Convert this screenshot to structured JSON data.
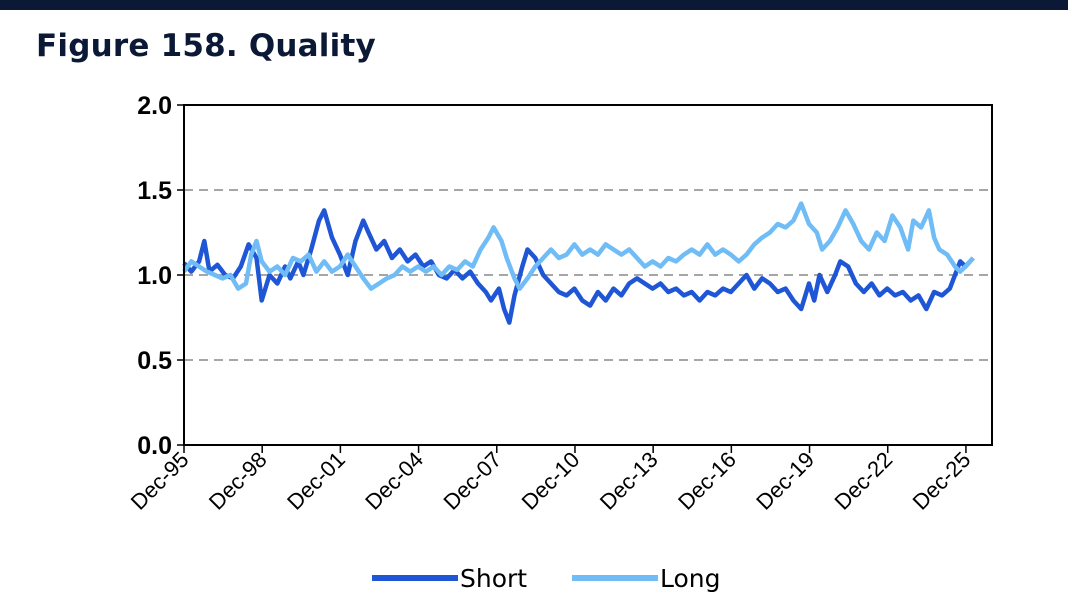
{
  "page": {
    "title": "Figure 158. Quality",
    "colors": {
      "header_bar": "#0b1836"
    }
  },
  "chart_data": {
    "type": "line",
    "title": "",
    "xlabel": "",
    "ylabel": "",
    "x_ticks": [
      "Dec-95",
      "Dec-98",
      "Dec-01",
      "Dec-04",
      "Dec-07",
      "Dec-10",
      "Dec-13",
      "Dec-16",
      "Dec-19",
      "Dec-22",
      "Dec-25"
    ],
    "y_ticks": [
      "0.0",
      "0.5",
      "1.0",
      "1.5",
      "2.0"
    ],
    "ylim": [
      0,
      2
    ],
    "xlim": [
      1995.92,
      2026.92
    ],
    "grid": "horizontal-dashed",
    "legend": "bottom-center",
    "series": [
      {
        "name": "Short",
        "color": "#1f56d6",
        "points": [
          [
            1995.92,
            1.07
          ],
          [
            1996.2,
            1.02
          ],
          [
            1996.5,
            1.08
          ],
          [
            1996.7,
            1.2
          ],
          [
            1996.9,
            1.02
          ],
          [
            1997.2,
            1.06
          ],
          [
            1997.5,
            1.0
          ],
          [
            1997.8,
            0.98
          ],
          [
            1998.1,
            1.05
          ],
          [
            1998.4,
            1.18
          ],
          [
            1998.7,
            1.1
          ],
          [
            1998.9,
            0.85
          ],
          [
            1999.2,
            1.0
          ],
          [
            1999.5,
            0.95
          ],
          [
            1999.8,
            1.05
          ],
          [
            2000.0,
            0.98
          ],
          [
            2000.3,
            1.08
          ],
          [
            2000.5,
            1.0
          ],
          [
            2000.8,
            1.15
          ],
          [
            2001.1,
            1.32
          ],
          [
            2001.3,
            1.38
          ],
          [
            2001.6,
            1.22
          ],
          [
            2001.9,
            1.12
          ],
          [
            2002.2,
            1.0
          ],
          [
            2002.5,
            1.2
          ],
          [
            2002.8,
            1.32
          ],
          [
            2003.0,
            1.25
          ],
          [
            2003.3,
            1.15
          ],
          [
            2003.6,
            1.2
          ],
          [
            2003.9,
            1.1
          ],
          [
            2004.2,
            1.15
          ],
          [
            2004.5,
            1.08
          ],
          [
            2004.8,
            1.12
          ],
          [
            2005.1,
            1.05
          ],
          [
            2005.4,
            1.08
          ],
          [
            2005.7,
            1.0
          ],
          [
            2006.0,
            0.98
          ],
          [
            2006.3,
            1.03
          ],
          [
            2006.6,
            0.98
          ],
          [
            2006.9,
            1.02
          ],
          [
            2007.2,
            0.95
          ],
          [
            2007.5,
            0.9
          ],
          [
            2007.7,
            0.85
          ],
          [
            2008.0,
            0.92
          ],
          [
            2008.2,
            0.8
          ],
          [
            2008.4,
            0.72
          ],
          [
            2008.6,
            0.88
          ],
          [
            2008.9,
            1.05
          ],
          [
            2009.1,
            1.15
          ],
          [
            2009.4,
            1.1
          ],
          [
            2009.7,
            1.0
          ],
          [
            2010.0,
            0.95
          ],
          [
            2010.3,
            0.9
          ],
          [
            2010.6,
            0.88
          ],
          [
            2010.9,
            0.92
          ],
          [
            2011.2,
            0.85
          ],
          [
            2011.5,
            0.82
          ],
          [
            2011.8,
            0.9
          ],
          [
            2012.1,
            0.85
          ],
          [
            2012.4,
            0.92
          ],
          [
            2012.7,
            0.88
          ],
          [
            2013.0,
            0.95
          ],
          [
            2013.3,
            0.98
          ],
          [
            2013.6,
            0.95
          ],
          [
            2013.9,
            0.92
          ],
          [
            2014.2,
            0.95
          ],
          [
            2014.5,
            0.9
          ],
          [
            2014.8,
            0.92
          ],
          [
            2015.1,
            0.88
          ],
          [
            2015.4,
            0.9
          ],
          [
            2015.7,
            0.85
          ],
          [
            2016.0,
            0.9
          ],
          [
            2016.3,
            0.88
          ],
          [
            2016.6,
            0.92
          ],
          [
            2016.9,
            0.9
          ],
          [
            2017.2,
            0.95
          ],
          [
            2017.5,
            1.0
          ],
          [
            2017.8,
            0.92
          ],
          [
            2018.1,
            0.98
          ],
          [
            2018.4,
            0.95
          ],
          [
            2018.7,
            0.9
          ],
          [
            2019.0,
            0.92
          ],
          [
            2019.3,
            0.85
          ],
          [
            2019.6,
            0.8
          ],
          [
            2019.9,
            0.95
          ],
          [
            2020.1,
            0.85
          ],
          [
            2020.3,
            1.0
          ],
          [
            2020.6,
            0.9
          ],
          [
            2020.9,
            1.0
          ],
          [
            2021.1,
            1.08
          ],
          [
            2021.4,
            1.05
          ],
          [
            2021.7,
            0.95
          ],
          [
            2022.0,
            0.9
          ],
          [
            2022.3,
            0.95
          ],
          [
            2022.6,
            0.88
          ],
          [
            2022.9,
            0.92
          ],
          [
            2023.2,
            0.88
          ],
          [
            2023.5,
            0.9
          ],
          [
            2023.8,
            0.85
          ],
          [
            2024.1,
            0.88
          ],
          [
            2024.4,
            0.8
          ],
          [
            2024.7,
            0.9
          ],
          [
            2025.0,
            0.88
          ],
          [
            2025.3,
            0.92
          ],
          [
            2025.5,
            1.0
          ],
          [
            2025.7,
            1.08
          ],
          [
            2025.9,
            1.05
          ],
          [
            2026.2,
            1.1
          ]
        ]
      },
      {
        "name": "Long",
        "color": "#6fbcf6",
        "points": [
          [
            1995.92,
            1.02
          ],
          [
            1996.2,
            1.08
          ],
          [
            1996.5,
            1.05
          ],
          [
            1996.8,
            1.02
          ],
          [
            1997.1,
            1.0
          ],
          [
            1997.4,
            0.98
          ],
          [
            1997.7,
            1.0
          ],
          [
            1998.0,
            0.92
          ],
          [
            1998.3,
            0.95
          ],
          [
            1998.5,
            1.12
          ],
          [
            1998.7,
            1.2
          ],
          [
            1998.9,
            1.08
          ],
          [
            1999.2,
            1.02
          ],
          [
            1999.5,
            1.05
          ],
          [
            1999.8,
            1.0
          ],
          [
            2000.1,
            1.1
          ],
          [
            2000.4,
            1.08
          ],
          [
            2000.7,
            1.12
          ],
          [
            2001.0,
            1.02
          ],
          [
            2001.3,
            1.08
          ],
          [
            2001.6,
            1.02
          ],
          [
            2001.9,
            1.05
          ],
          [
            2002.2,
            1.12
          ],
          [
            2002.5,
            1.05
          ],
          [
            2002.8,
            0.98
          ],
          [
            2003.1,
            0.92
          ],
          [
            2003.4,
            0.95
          ],
          [
            2003.7,
            0.98
          ],
          [
            2004.0,
            1.0
          ],
          [
            2004.3,
            1.05
          ],
          [
            2004.6,
            1.02
          ],
          [
            2004.9,
            1.05
          ],
          [
            2005.2,
            1.02
          ],
          [
            2005.5,
            1.05
          ],
          [
            2005.8,
            1.0
          ],
          [
            2006.1,
            1.05
          ],
          [
            2006.4,
            1.03
          ],
          [
            2006.7,
            1.08
          ],
          [
            2007.0,
            1.05
          ],
          [
            2007.3,
            1.15
          ],
          [
            2007.6,
            1.22
          ],
          [
            2007.8,
            1.28
          ],
          [
            2008.1,
            1.2
          ],
          [
            2008.3,
            1.1
          ],
          [
            2008.6,
            0.98
          ],
          [
            2008.8,
            0.92
          ],
          [
            2009.1,
            0.98
          ],
          [
            2009.4,
            1.05
          ],
          [
            2009.7,
            1.1
          ],
          [
            2010.0,
            1.15
          ],
          [
            2010.3,
            1.1
          ],
          [
            2010.6,
            1.12
          ],
          [
            2010.9,
            1.18
          ],
          [
            2011.2,
            1.12
          ],
          [
            2011.5,
            1.15
          ],
          [
            2011.8,
            1.12
          ],
          [
            2012.1,
            1.18
          ],
          [
            2012.4,
            1.15
          ],
          [
            2012.7,
            1.12
          ],
          [
            2013.0,
            1.15
          ],
          [
            2013.3,
            1.1
          ],
          [
            2013.6,
            1.05
          ],
          [
            2013.9,
            1.08
          ],
          [
            2014.2,
            1.05
          ],
          [
            2014.5,
            1.1
          ],
          [
            2014.8,
            1.08
          ],
          [
            2015.1,
            1.12
          ],
          [
            2015.4,
            1.15
          ],
          [
            2015.7,
            1.12
          ],
          [
            2016.0,
            1.18
          ],
          [
            2016.3,
            1.12
          ],
          [
            2016.6,
            1.15
          ],
          [
            2016.9,
            1.12
          ],
          [
            2017.2,
            1.08
          ],
          [
            2017.5,
            1.12
          ],
          [
            2017.8,
            1.18
          ],
          [
            2018.1,
            1.22
          ],
          [
            2018.4,
            1.25
          ],
          [
            2018.7,
            1.3
          ],
          [
            2019.0,
            1.28
          ],
          [
            2019.3,
            1.32
          ],
          [
            2019.6,
            1.42
          ],
          [
            2019.9,
            1.3
          ],
          [
            2020.2,
            1.25
          ],
          [
            2020.4,
            1.15
          ],
          [
            2020.7,
            1.2
          ],
          [
            2021.0,
            1.28
          ],
          [
            2021.3,
            1.38
          ],
          [
            2021.6,
            1.3
          ],
          [
            2021.9,
            1.2
          ],
          [
            2022.2,
            1.15
          ],
          [
            2022.5,
            1.25
          ],
          [
            2022.8,
            1.2
          ],
          [
            2023.1,
            1.35
          ],
          [
            2023.4,
            1.28
          ],
          [
            2023.7,
            1.15
          ],
          [
            2023.9,
            1.32
          ],
          [
            2024.2,
            1.28
          ],
          [
            2024.5,
            1.38
          ],
          [
            2024.7,
            1.22
          ],
          [
            2024.9,
            1.15
          ],
          [
            2025.2,
            1.12
          ],
          [
            2025.5,
            1.05
          ],
          [
            2025.7,
            1.02
          ],
          [
            2025.9,
            1.05
          ],
          [
            2026.2,
            1.1
          ]
        ]
      }
    ]
  }
}
